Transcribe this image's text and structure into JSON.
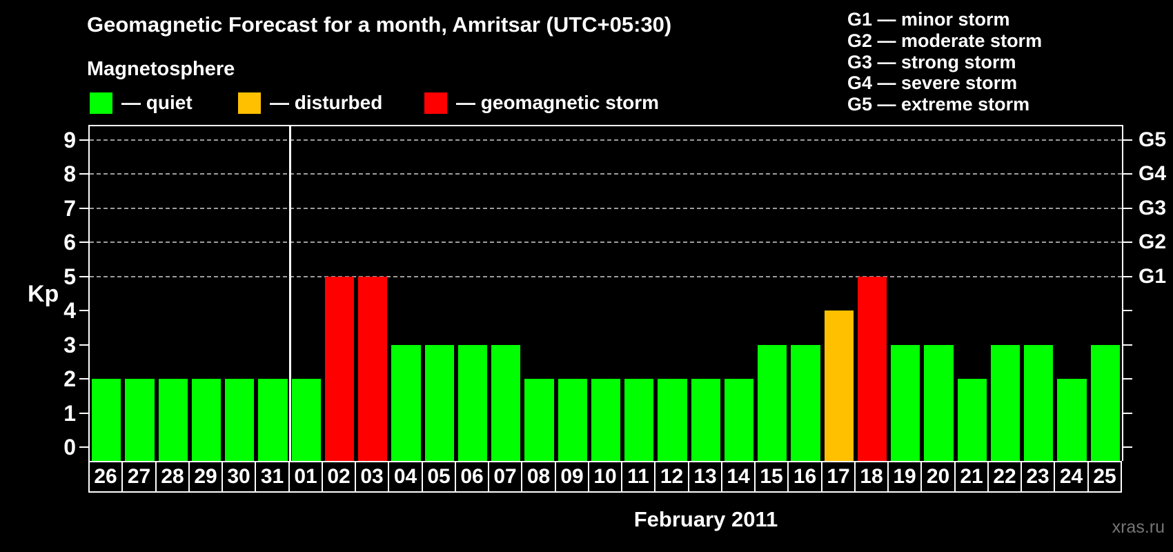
{
  "header": {
    "title": "Geomagnetic Forecast for a month, Amritsar (UTC+05:30)"
  },
  "legend": {
    "title": "Magnetosphere",
    "items": [
      {
        "status": "quiet",
        "label": "— quiet",
        "color": "#00ff00"
      },
      {
        "status": "disturbed",
        "label": "— disturbed",
        "color": "#ffc000"
      },
      {
        "status": "storm",
        "label": "— geomagnetic storm",
        "color": "#ff0000"
      }
    ]
  },
  "storm_scale_legend": {
    "lines": [
      "G1 — minor storm",
      "G2 — moderate storm",
      "G3 — strong storm",
      "G4 — severe storm",
      "G5 — extreme storm"
    ]
  },
  "axes": {
    "y_label": "Kp",
    "x_label": "February 2011",
    "y_ticks": [
      0,
      1,
      2,
      3,
      4,
      5,
      6,
      7,
      8,
      9
    ],
    "gridline_levels": [
      5,
      6,
      7,
      8,
      9
    ],
    "right_labels": [
      {
        "kp": 5,
        "label": "G1"
      },
      {
        "kp": 6,
        "label": "G2"
      },
      {
        "kp": 7,
        "label": "G3"
      },
      {
        "kp": 8,
        "label": "G4"
      },
      {
        "kp": 9,
        "label": "G5"
      }
    ]
  },
  "chart_data": {
    "type": "bar",
    "title": "Geomagnetic Forecast for a month, Amritsar (UTC+05:30)",
    "xlabel": "February 2011",
    "ylabel": "Kp",
    "ylim": [
      0,
      9
    ],
    "grid": "dashed horizontal at Kp 5-9 only",
    "legend_position": "top",
    "categories": [
      "26",
      "27",
      "28",
      "29",
      "30",
      "31",
      "01",
      "02",
      "03",
      "04",
      "05",
      "06",
      "07",
      "08",
      "09",
      "10",
      "11",
      "12",
      "13",
      "14",
      "15",
      "16",
      "17",
      "18",
      "19",
      "20",
      "21",
      "22",
      "23",
      "24",
      "25"
    ],
    "values": [
      2,
      2,
      2,
      2,
      2,
      2,
      2,
      5,
      5,
      3,
      3,
      3,
      3,
      2,
      2,
      2,
      2,
      2,
      2,
      2,
      3,
      3,
      4,
      5,
      3,
      3,
      2,
      3,
      3,
      2,
      3
    ],
    "statuses": [
      "quiet",
      "quiet",
      "quiet",
      "quiet",
      "quiet",
      "quiet",
      "quiet",
      "storm",
      "storm",
      "quiet",
      "quiet",
      "quiet",
      "quiet",
      "quiet",
      "quiet",
      "quiet",
      "quiet",
      "quiet",
      "quiet",
      "quiet",
      "quiet",
      "quiet",
      "disturbed",
      "storm",
      "quiet",
      "quiet",
      "quiet",
      "quiet",
      "quiet",
      "quiet",
      "quiet"
    ],
    "status_colors": {
      "quiet": "#00ff00",
      "disturbed": "#ffc000",
      "storm": "#ff0000"
    },
    "month_separator_after_index": 5
  },
  "footer": {
    "watermark": "xras.ru"
  }
}
